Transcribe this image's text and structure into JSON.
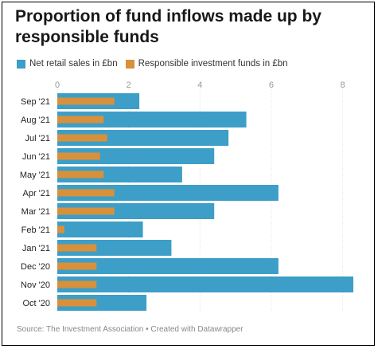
{
  "title": "Proportion of fund inflows made up by responsible funds",
  "source": "Source: The Investment Association • Created with Datawrapper",
  "chart_data": {
    "type": "bar",
    "orientation": "horizontal",
    "categories": [
      "Sep '21",
      "Aug '21",
      "Jul '21",
      "Jun '21",
      "May '21",
      "Apr '21",
      "Mar '21",
      "Feb '21",
      "Jan '21",
      "Dec '20",
      "Nov '20",
      "Oct '20"
    ],
    "series": [
      {
        "name": "Net retail sales in £bn",
        "color": "#3d9ec8",
        "values": [
          2.3,
          5.3,
          4.8,
          4.4,
          3.5,
          6.2,
          4.4,
          2.4,
          3.2,
          6.2,
          8.3,
          2.5
        ]
      },
      {
        "name": "Responsible investment funds in £bn",
        "color": "#d9903a",
        "values": [
          1.6,
          1.3,
          1.4,
          1.2,
          1.3,
          1.6,
          1.6,
          0.2,
          1.1,
          1.1,
          1.1,
          1.1
        ]
      }
    ],
    "x_ticks": [
      "0",
      "2",
      "4",
      "6",
      "8"
    ],
    "xlim": [
      0,
      8.3
    ],
    "grid": true,
    "legend_position": "top-left"
  }
}
